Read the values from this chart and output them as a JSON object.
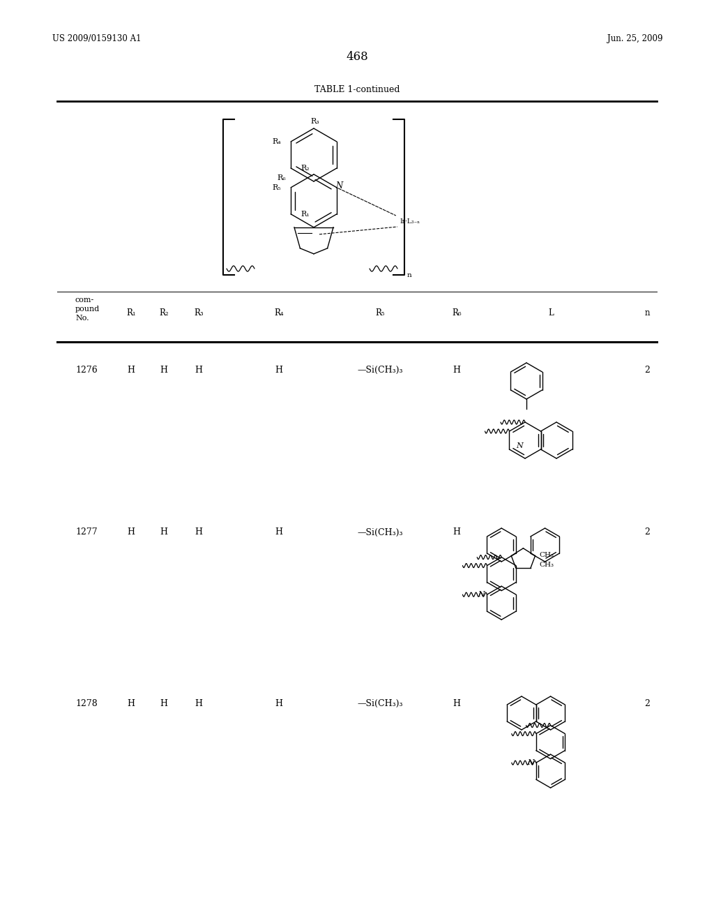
{
  "page_number": "468",
  "patent_left": "US 2009/0159130 A1",
  "patent_right": "Jun. 25, 2009",
  "table_title": "TABLE 1-continued",
  "background": "#ffffff",
  "row1_no": "1276",
  "row2_no": "1277",
  "row3_no": "1278",
  "r_val": "H",
  "r5_val": "—Si(CH₃)₃",
  "n_val": "2",
  "col_headers": [
    "com-",
    "pound",
    "No.",
    "R₁",
    "R₂",
    "R₃",
    "R₄",
    "R₅",
    "R₆",
    "L",
    "n"
  ]
}
